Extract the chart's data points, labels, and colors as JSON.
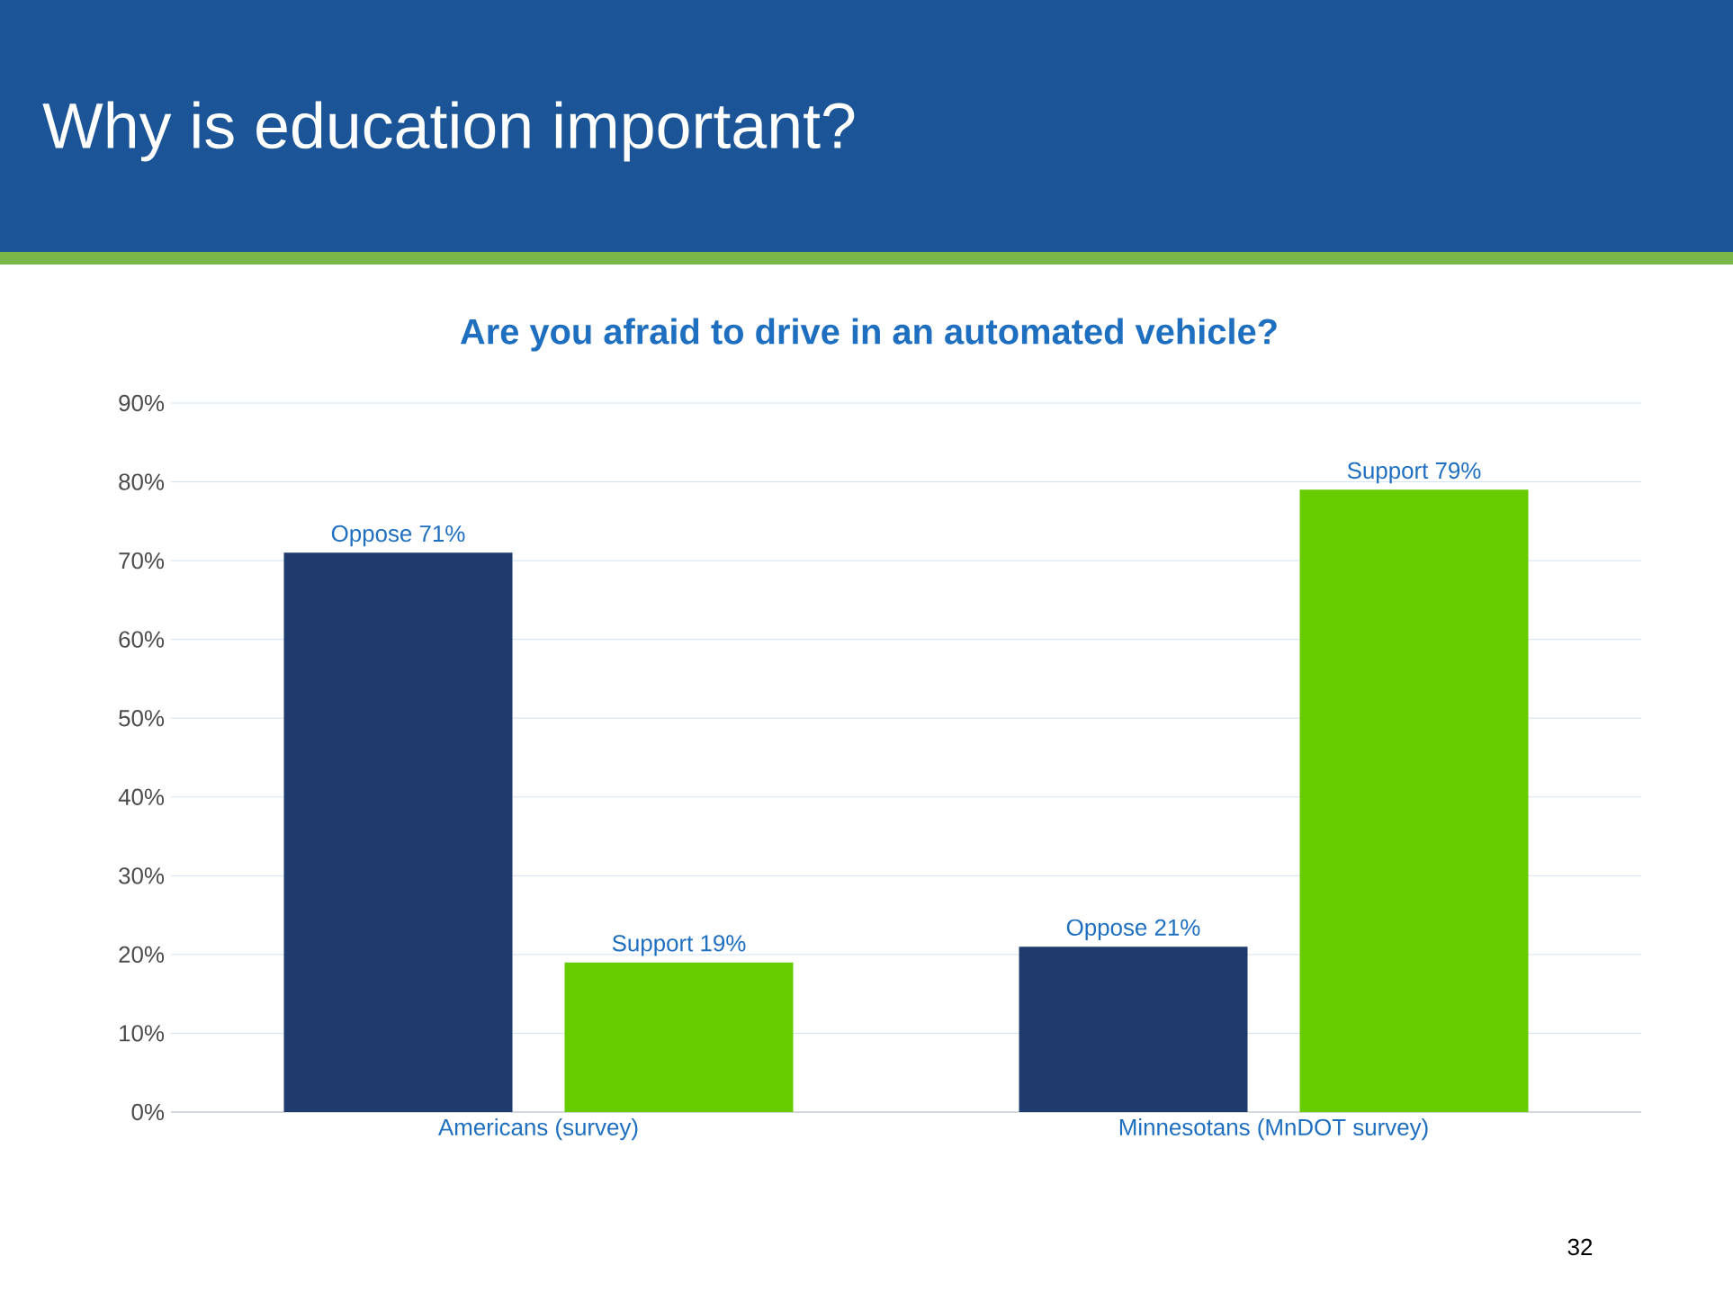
{
  "chart_data": {
    "type": "bar",
    "title": "Why is education important?",
    "subtitle": "Are you afraid to drive in an automated vehicle?",
    "categories": [
      "Americans (survey)",
      "Minnesotans (MnDOT survey)"
    ],
    "series": [
      {
        "color": "#1f3b6e",
        "values": [
          71,
          21
        ],
        "value_labels": [
          "Oppose 71%",
          "Oppose 21%"
        ]
      },
      {
        "color": "#66cc00",
        "values": [
          19,
          79
        ],
        "value_labels": [
          "Support 19%",
          "Support 79%"
        ]
      }
    ],
    "ylim": [
      0,
      90
    ],
    "yticks": [
      {
        "value": 0,
        "label": "0%"
      },
      {
        "value": 10,
        "label": "10%"
      },
      {
        "value": 20,
        "label": "20%"
      },
      {
        "value": 30,
        "label": "30%"
      },
      {
        "value": 40,
        "label": "40%"
      },
      {
        "value": 50,
        "label": "50%"
      },
      {
        "value": 60,
        "label": "60%"
      },
      {
        "value": 70,
        "label": "70%"
      },
      {
        "value": 80,
        "label": "80%"
      },
      {
        "value": 90,
        "label": "90%"
      }
    ],
    "grid": "y",
    "annotations": [
      "32"
    ]
  }
}
